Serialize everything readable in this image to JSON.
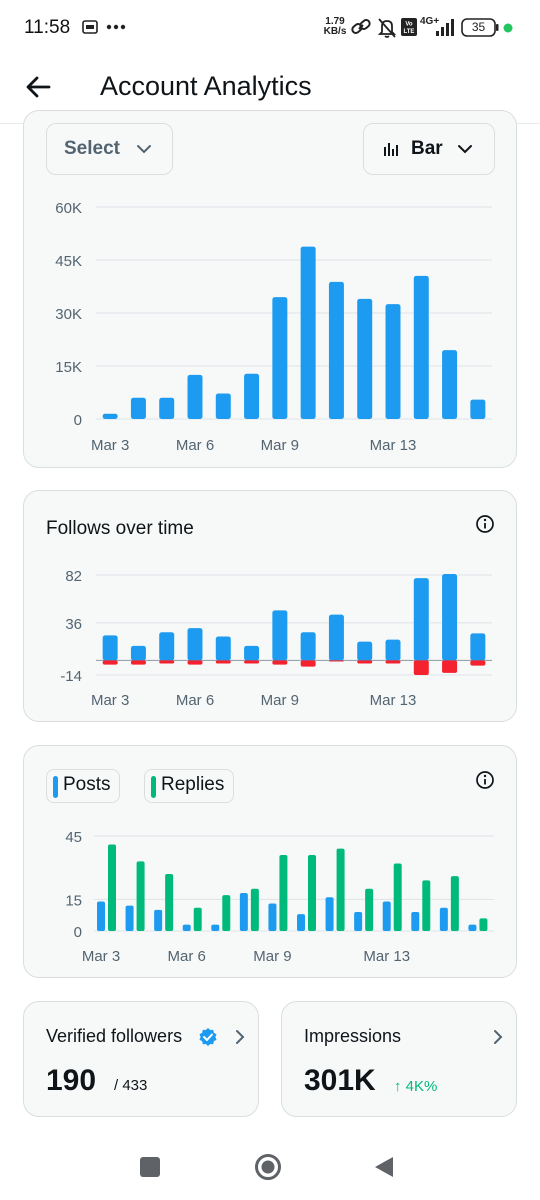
{
  "status_bar": {
    "time": "11:58",
    "net_speed_top": "1.79",
    "net_speed_bottom": "KB/s",
    "network": "4G+",
    "battery": "35",
    "icons": [
      "sim-card-icon",
      "more-dots-icon",
      "link-icon",
      "mute-bell-icon",
      "volte-icon",
      "signal-icon",
      "battery-icon",
      "dot-icon"
    ]
  },
  "header": {
    "title": "Account Analytics",
    "back_icon": "arrow-left-icon"
  },
  "card1": {
    "select_label": "Select",
    "chart_type_label": "Bar",
    "icons": [
      "chevron-down-icon",
      "bar-chart-icon"
    ]
  },
  "card2": {
    "title": "Follows over time",
    "info_icon": "info-icon"
  },
  "card3": {
    "legend": [
      "Posts",
      "Replies"
    ],
    "info_icon": "info-icon"
  },
  "stats": {
    "verified": {
      "label": "Verified followers",
      "value": "190",
      "total": "/ 433",
      "icon": "verified-badge-icon"
    },
    "impressions": {
      "label": "Impressions",
      "value": "301K",
      "delta": "↑ 4K%"
    }
  },
  "colors": {
    "blue": "#1d9bf0",
    "red": "#f4212e",
    "green": "#00ba7c",
    "card_bg": "#f7f9f9"
  },
  "chart_data": [
    {
      "type": "bar",
      "x_tick_labels": [
        "Mar 3",
        "Mar 6",
        "Mar 9",
        "Mar 13"
      ],
      "y_tick_labels": [
        "0",
        "15K",
        "30K",
        "45K",
        "60K"
      ],
      "ylim": [
        0,
        60000
      ],
      "grid": true,
      "values": [
        1500,
        6000,
        6000,
        12500,
        7200,
        12800,
        34500,
        48800,
        38800,
        34000,
        32500,
        40500,
        19500,
        5500
      ]
    },
    {
      "type": "bar",
      "x_tick_labels": [
        "Mar 3",
        "Mar 6",
        "Mar 9",
        "Mar 13"
      ],
      "y_tick_labels": [
        "-14",
        "36",
        "82"
      ],
      "ylim": [
        -14,
        82
      ],
      "grid": true,
      "series": [
        {
          "color": "#1d9bf0",
          "values": [
            24,
            14,
            27,
            31,
            23,
            14,
            48,
            27,
            44,
            18,
            20,
            79,
            83,
            26
          ]
        },
        {
          "color": "#f4212e",
          "values": [
            -4,
            -4,
            -3,
            -4,
            -3,
            -3,
            -4,
            -6,
            -1,
            -3,
            -3,
            -14,
            -12,
            -5
          ]
        }
      ]
    },
    {
      "type": "bar",
      "x_tick_labels": [
        "Mar 3",
        "Mar 6",
        "Mar 9",
        "Mar 13"
      ],
      "y_tick_labels": [
        "0",
        "15",
        "45"
      ],
      "ylim": [
        0,
        45
      ],
      "grid": true,
      "series": [
        {
          "name": "Posts",
          "color": "#1d9bf0",
          "values": [
            14,
            12,
            10,
            3,
            3,
            18,
            13,
            8,
            16,
            9,
            14,
            9,
            11,
            3
          ]
        },
        {
          "name": "Replies",
          "color": "#00ba7c",
          "values": [
            41,
            33,
            27,
            11,
            17,
            20,
            36,
            36,
            39,
            20,
            32,
            24,
            26,
            6
          ]
        }
      ]
    }
  ]
}
